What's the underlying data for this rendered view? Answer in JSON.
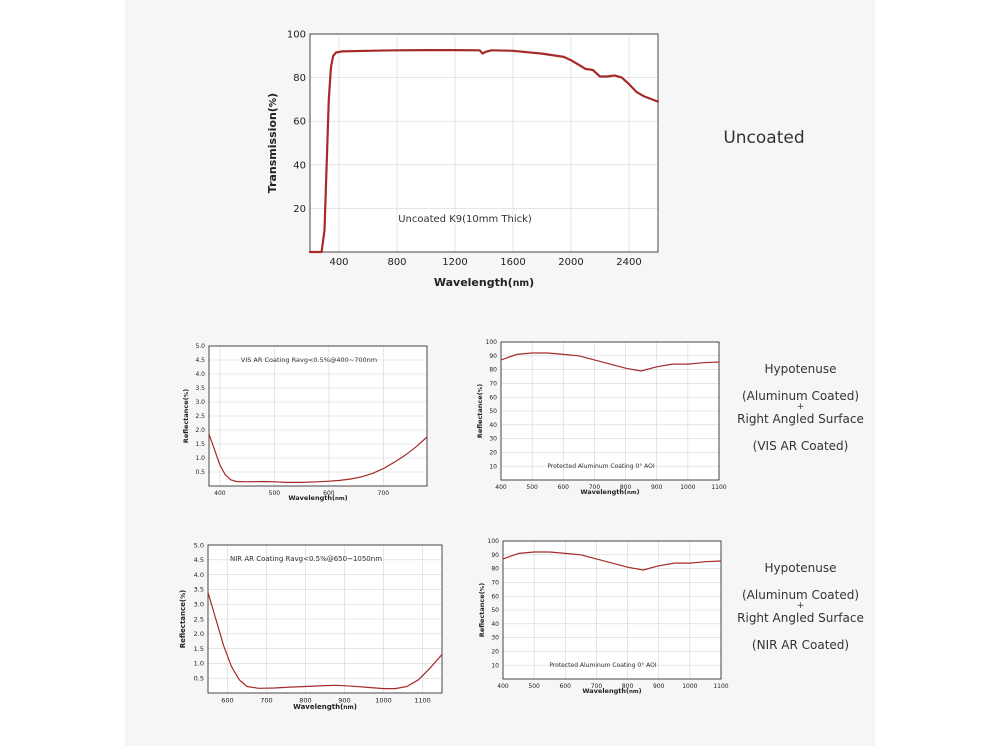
{
  "labels": {
    "uncoated": "Uncoated",
    "vis": [
      "Hypotenuse",
      "(Aluminum Coated)",
      "+",
      "Right Angled Surface",
      "(VIS AR Coated)"
    ],
    "nir": [
      "Hypotenuse",
      "(Aluminum Coated)",
      "+",
      "Right Angled Surface",
      "(NIR AR Coated)"
    ]
  },
  "colors": {
    "line": "#a52a2a",
    "grid": "#d6d6d6",
    "frame": "#333333"
  },
  "chart_data": [
    {
      "type": "line",
      "annotation": "Uncoated K9(10mm Thick)",
      "xlabel": "Wavelength(nm)",
      "ylabel": "Transmission(%)",
      "xlim": [
        200,
        2600
      ],
      "ylim": [
        0,
        100
      ],
      "xticks": [
        400,
        800,
        1200,
        1600,
        2000,
        2400
      ],
      "yticks": [
        20,
        40,
        60,
        80,
        100
      ],
      "grid": true,
      "series": [
        {
          "x": [
            200,
            280,
            300,
            330,
            345,
            360,
            380,
            420,
            600,
            800,
            1000,
            1200,
            1370,
            1390,
            1410,
            1450,
            1600,
            1800,
            1950,
            2000,
            2050,
            2100,
            2150,
            2200,
            2250,
            2300,
            2350,
            2400,
            2450,
            2500,
            2600
          ],
          "y": [
            0,
            0,
            10,
            70,
            85,
            90,
            91.5,
            92,
            92.3,
            92.5,
            92.6,
            92.6,
            92.5,
            91,
            91.8,
            92.5,
            92.3,
            91,
            89.5,
            88,
            86,
            84,
            83.5,
            80.5,
            80.5,
            81,
            80,
            77,
            73.5,
            71.5,
            69
          ]
        }
      ]
    },
    {
      "type": "line",
      "annotation": "VIS AR Coating Ravg<0.5%@400~700nm",
      "xlabel": "Wavelength(nm)",
      "ylabel": "Reflectance(%)",
      "xlim": [
        380,
        780
      ],
      "ylim": [
        0,
        5
      ],
      "xticks": [
        400,
        500,
        600,
        700
      ],
      "yticks": [
        0.5,
        1.0,
        1.5,
        2.0,
        2.5,
        3.0,
        3.5,
        4.0,
        4.5,
        5.0
      ],
      "grid": true,
      "series": [
        {
          "x": [
            380,
            390,
            400,
            410,
            420,
            430,
            450,
            480,
            500,
            520,
            550,
            580,
            600,
            620,
            640,
            660,
            680,
            700,
            720,
            740,
            760,
            780
          ],
          "y": [
            1.85,
            1.3,
            0.75,
            0.4,
            0.22,
            0.16,
            0.15,
            0.16,
            0.15,
            0.13,
            0.13,
            0.15,
            0.17,
            0.2,
            0.25,
            0.33,
            0.45,
            0.62,
            0.85,
            1.1,
            1.4,
            1.75
          ]
        }
      ]
    },
    {
      "type": "line",
      "annotation": "Protected Aluminum Coating 0° AOI",
      "xlabel": "Wavelength(nm)",
      "ylabel": "Reflectance(%)",
      "xlim": [
        400,
        1100
      ],
      "ylim": [
        0,
        100
      ],
      "xticks": [
        400,
        500,
        600,
        700,
        800,
        900,
        1000,
        1100
      ],
      "yticks": [
        10,
        20,
        30,
        40,
        50,
        60,
        70,
        80,
        90,
        100
      ],
      "grid": true,
      "series": [
        {
          "x": [
            400,
            450,
            500,
            550,
            600,
            650,
            700,
            750,
            800,
            850,
            900,
            950,
            1000,
            1050,
            1100
          ],
          "y": [
            87,
            91,
            92,
            92,
            91,
            90,
            87,
            84,
            81,
            79,
            82,
            84,
            84,
            85,
            85.5
          ]
        }
      ]
    },
    {
      "type": "line",
      "annotation": "NIR AR Coating Ravg<0.5%@650~1050nm",
      "xlabel": "Wavelength(nm)",
      "ylabel": "Reflectance(%)",
      "xlim": [
        550,
        1150
      ],
      "ylim": [
        0,
        5
      ],
      "xticks": [
        600,
        700,
        800,
        900,
        1000,
        1100
      ],
      "yticks": [
        0.5,
        1.0,
        1.5,
        2.0,
        2.5,
        3.0,
        3.5,
        4.0,
        4.5,
        5.0
      ],
      "grid": true,
      "series": [
        {
          "x": [
            550,
            570,
            590,
            610,
            630,
            650,
            680,
            720,
            760,
            800,
            850,
            880,
            920,
            960,
            1000,
            1030,
            1060,
            1090,
            1120,
            1150
          ],
          "y": [
            3.4,
            2.5,
            1.6,
            0.9,
            0.45,
            0.22,
            0.16,
            0.17,
            0.2,
            0.22,
            0.25,
            0.26,
            0.23,
            0.19,
            0.15,
            0.15,
            0.22,
            0.45,
            0.85,
            1.3
          ]
        }
      ]
    },
    {
      "type": "line",
      "annotation": "Protected Aluminum Coating 0° AOI",
      "xlabel": "Wavelength(nm)",
      "ylabel": "Reflectance(%)",
      "xlim": [
        400,
        1100
      ],
      "ylim": [
        0,
        100
      ],
      "xticks": [
        400,
        500,
        600,
        700,
        800,
        900,
        1000,
        1100
      ],
      "yticks": [
        10,
        20,
        30,
        40,
        50,
        60,
        70,
        80,
        90,
        100
      ],
      "grid": true,
      "series": [
        {
          "x": [
            400,
            450,
            500,
            550,
            600,
            650,
            700,
            750,
            800,
            850,
            900,
            950,
            1000,
            1050,
            1100
          ],
          "y": [
            87,
            91,
            92,
            92,
            91,
            90,
            87,
            84,
            81,
            79,
            82,
            84,
            84,
            85,
            85.5
          ]
        }
      ]
    }
  ]
}
